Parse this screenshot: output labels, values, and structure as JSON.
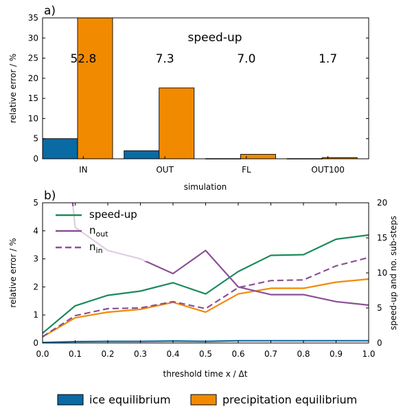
{
  "chart_data": [
    {
      "type": "bar",
      "panel_label": "a)",
      "categories": [
        "IN",
        "OUT",
        "FL",
        "OUT100"
      ],
      "series": [
        {
          "name": "ice equilibrium",
          "color": "#0a6aa4",
          "values": [
            5.0,
            2.0,
            0.05,
            0.05
          ]
        },
        {
          "name": "precipitation equilibrium",
          "color": "#f28a00",
          "values": [
            35.0,
            17.6,
            1.1,
            0.3
          ]
        }
      ],
      "annotation_title": "speed-up",
      "annotations": [
        "52.8",
        "7.3",
        "7.0",
        "1.7"
      ],
      "xlabel": "simulation",
      "ylabel": "relative error / %",
      "ylim": [
        0,
        35
      ],
      "yticks": [
        0,
        5,
        10,
        15,
        20,
        25,
        30,
        35
      ],
      "grid": false
    },
    {
      "type": "line",
      "panel_label": "b)",
      "x": [
        0.0,
        0.1,
        0.2,
        0.3,
        0.4,
        0.5,
        0.6,
        0.7,
        0.8,
        0.9,
        1.0
      ],
      "xticks": [
        "0.0",
        "0.1",
        "0.2",
        "0.3",
        "0.4",
        "0.5",
        "0.6",
        "0.7",
        "0.8",
        "0.9",
        "1.0"
      ],
      "xlabel": "threshold time x / Δt",
      "ylabel": "relative error / %",
      "ylabel_right": "speed-up and no. sub-steps",
      "xlim": [
        0,
        1
      ],
      "ylim": [
        0,
        5
      ],
      "ylim_right": [
        0,
        20
      ],
      "yticks": [
        0,
        1,
        2,
        3,
        4,
        5
      ],
      "yticks_right": [
        0,
        5,
        10,
        15,
        20
      ],
      "series": [
        {
          "name": "ice equilibrium",
          "axis": "left",
          "color": "#0a6aa4",
          "style": "solid",
          "values": [
            0.02,
            0.05,
            0.06,
            0.06,
            0.07,
            0.06,
            0.08,
            0.08,
            0.08,
            0.08,
            0.08
          ]
        },
        {
          "name": "precipitation equilibrium",
          "axis": "left",
          "color": "#f28a00",
          "style": "solid",
          "values": [
            0.22,
            0.9,
            1.1,
            1.2,
            1.45,
            1.1,
            1.75,
            1.95,
            1.95,
            2.17,
            2.28
          ]
        },
        {
          "name": "speed-up",
          "axis": "right",
          "color": "#1a8a5a",
          "style": "solid",
          "values": [
            1.4,
            5.3,
            6.8,
            7.4,
            8.6,
            7.0,
            10.2,
            12.5,
            12.6,
            14.8,
            15.4
          ]
        },
        {
          "name": "n_out",
          "label_main": "n",
          "label_sub": "out",
          "axis": "right",
          "color": "#8b4f96",
          "style": "solid",
          "values": [
            null,
            16.5,
            13.2,
            12.0,
            9.9,
            13.2,
            8.0,
            6.9,
            6.9,
            5.9,
            5.4
          ]
        },
        {
          "name": "n_in",
          "label_main": "n",
          "label_sub": "in",
          "axis": "right",
          "color": "#8b4f96",
          "style": "dashed",
          "values": [
            0.9,
            3.9,
            4.9,
            5.0,
            5.9,
            4.9,
            7.9,
            8.9,
            9.0,
            11.0,
            12.2
          ]
        }
      ],
      "legend_position": "top-left",
      "grid": false
    }
  ],
  "legend": [
    {
      "label": "ice equilibrium",
      "color": "#0a6aa4"
    },
    {
      "label": "precipitation equilibrium",
      "color": "#f28a00"
    }
  ]
}
